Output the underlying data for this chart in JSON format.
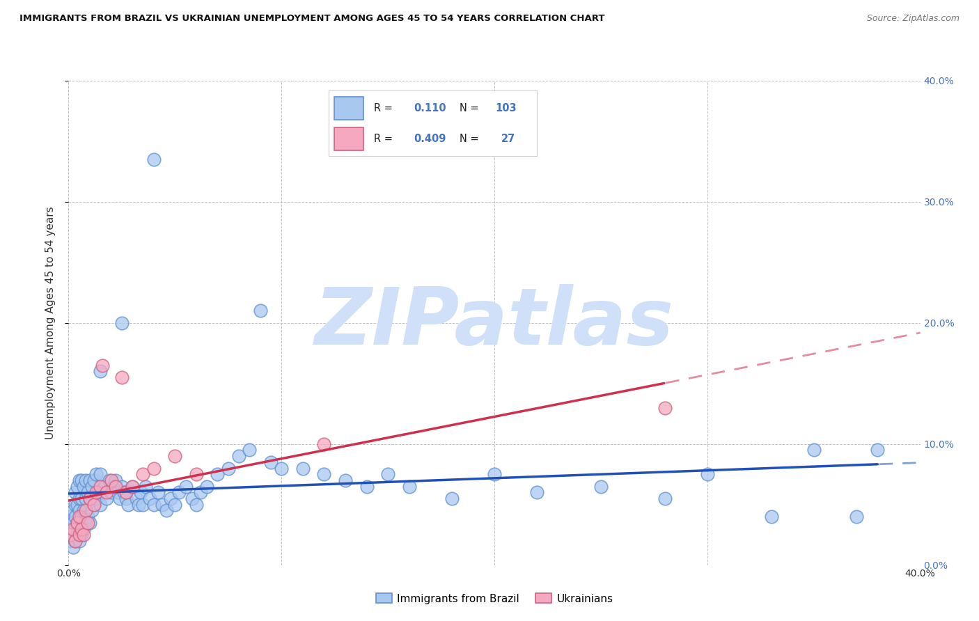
{
  "title": "IMMIGRANTS FROM BRAZIL VS UKRAINIAN UNEMPLOYMENT AMONG AGES 45 TO 54 YEARS CORRELATION CHART",
  "source": "Source: ZipAtlas.com",
  "ylabel": "Unemployment Among Ages 45 to 54 years",
  "xlim": [
    0.0,
    0.4
  ],
  "ylim": [
    0.0,
    0.4
  ],
  "xticks": [
    0.0,
    0.1,
    0.2,
    0.3,
    0.4
  ],
  "yticks": [
    0.0,
    0.1,
    0.2,
    0.3,
    0.4
  ],
  "brazil_R": 0.11,
  "brazil_N": 103,
  "ukraine_R": 0.409,
  "ukraine_N": 27,
  "brazil_color": "#A8C8F0",
  "ukraine_color": "#F5A8C0",
  "brazil_edge_color": "#6090D0",
  "ukraine_edge_color": "#D06080",
  "regression_brazil_color": "#2050B8",
  "regression_ukraine_color": "#D03050",
  "watermark_text": "ZIPatlas",
  "watermark_color": "#D0E0F8",
  "legend_brazil_label": "Immigrants from Brazil",
  "legend_ukraine_label": "Ukrainians",
  "right_tick_color": "#4472C4",
  "title_color": "#111111",
  "source_color": "#777777",
  "brazil_x": [
    0.001,
    0.001,
    0.001,
    0.002,
    0.002,
    0.002,
    0.002,
    0.003,
    0.003,
    0.003,
    0.003,
    0.003,
    0.004,
    0.004,
    0.004,
    0.004,
    0.005,
    0.005,
    0.005,
    0.005,
    0.005,
    0.006,
    0.006,
    0.006,
    0.006,
    0.007,
    0.007,
    0.007,
    0.008,
    0.008,
    0.008,
    0.009,
    0.009,
    0.01,
    0.01,
    0.01,
    0.011,
    0.011,
    0.012,
    0.012,
    0.013,
    0.013,
    0.014,
    0.015,
    0.015,
    0.016,
    0.017,
    0.018,
    0.019,
    0.02,
    0.021,
    0.022,
    0.023,
    0.024,
    0.025,
    0.026,
    0.027,
    0.028,
    0.03,
    0.032,
    0.033,
    0.034,
    0.035,
    0.036,
    0.038,
    0.04,
    0.042,
    0.044,
    0.046,
    0.048,
    0.05,
    0.052,
    0.055,
    0.058,
    0.06,
    0.062,
    0.065,
    0.07,
    0.075,
    0.08,
    0.085,
    0.09,
    0.095,
    0.1,
    0.11,
    0.12,
    0.13,
    0.14,
    0.15,
    0.16,
    0.18,
    0.2,
    0.22,
    0.25,
    0.28,
    0.3,
    0.33,
    0.35,
    0.37,
    0.38,
    0.015,
    0.025,
    0.04
  ],
  "brazil_y": [
    0.02,
    0.03,
    0.04,
    0.015,
    0.025,
    0.035,
    0.045,
    0.02,
    0.03,
    0.04,
    0.05,
    0.06,
    0.025,
    0.035,
    0.05,
    0.065,
    0.02,
    0.03,
    0.045,
    0.055,
    0.07,
    0.025,
    0.04,
    0.055,
    0.07,
    0.03,
    0.045,
    0.065,
    0.035,
    0.055,
    0.07,
    0.04,
    0.06,
    0.035,
    0.055,
    0.07,
    0.045,
    0.065,
    0.05,
    0.07,
    0.055,
    0.075,
    0.06,
    0.05,
    0.075,
    0.06,
    0.065,
    0.055,
    0.07,
    0.06,
    0.065,
    0.07,
    0.06,
    0.055,
    0.065,
    0.06,
    0.055,
    0.05,
    0.065,
    0.055,
    0.05,
    0.06,
    0.05,
    0.065,
    0.055,
    0.05,
    0.06,
    0.05,
    0.045,
    0.055,
    0.05,
    0.06,
    0.065,
    0.055,
    0.05,
    0.06,
    0.065,
    0.075,
    0.08,
    0.09,
    0.095,
    0.21,
    0.085,
    0.08,
    0.08,
    0.075,
    0.07,
    0.065,
    0.075,
    0.065,
    0.055,
    0.075,
    0.06,
    0.065,
    0.055,
    0.075,
    0.04,
    0.095,
    0.04,
    0.095,
    0.16,
    0.2,
    0.335
  ],
  "ukraine_x": [
    0.001,
    0.002,
    0.003,
    0.004,
    0.005,
    0.005,
    0.006,
    0.007,
    0.008,
    0.009,
    0.01,
    0.012,
    0.013,
    0.015,
    0.016,
    0.018,
    0.02,
    0.022,
    0.025,
    0.027,
    0.03,
    0.035,
    0.04,
    0.05,
    0.06,
    0.12,
    0.28
  ],
  "ukraine_y": [
    0.025,
    0.03,
    0.02,
    0.035,
    0.025,
    0.04,
    0.03,
    0.025,
    0.045,
    0.035,
    0.055,
    0.05,
    0.06,
    0.065,
    0.165,
    0.06,
    0.07,
    0.065,
    0.155,
    0.06,
    0.065,
    0.075,
    0.08,
    0.09,
    0.075,
    0.1,
    0.13
  ]
}
